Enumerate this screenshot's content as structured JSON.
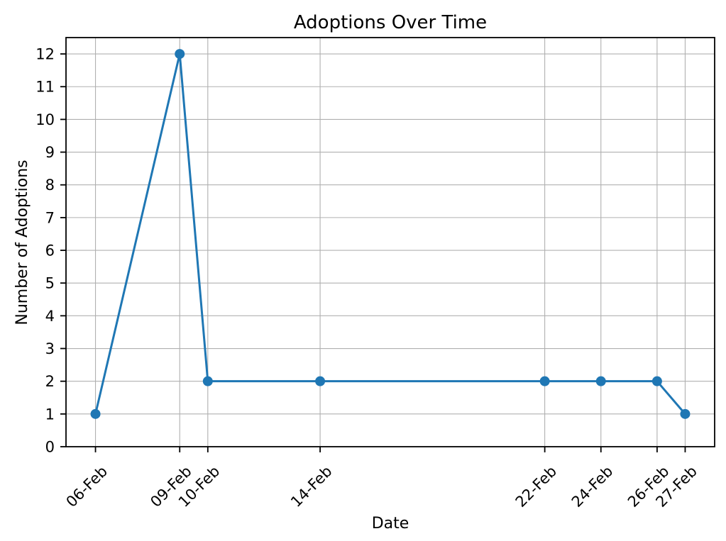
{
  "chart_data": {
    "type": "line",
    "title": "Adoptions Over Time",
    "xlabel": "Date",
    "ylabel": "Number of Adoptions",
    "x_tick_labels": [
      "06-Feb",
      "09-Feb",
      "10-Feb",
      "14-Feb",
      "22-Feb",
      "24-Feb",
      "26-Feb",
      "27-Feb"
    ],
    "x_day_numbers": [
      6,
      9,
      10,
      14,
      22,
      24,
      26,
      27
    ],
    "series": [
      {
        "name": "Adoptions",
        "values": [
          1,
          12,
          2,
          2,
          2,
          2,
          2,
          1
        ]
      }
    ],
    "y_ticks": [
      0,
      1,
      2,
      3,
      4,
      5,
      6,
      7,
      8,
      9,
      10,
      11,
      12
    ],
    "xlim_days": [
      4.95,
      28.05
    ],
    "ylim": [
      0,
      12.5
    ],
    "grid": true,
    "legend": "none",
    "x_tick_rotation_deg": 45,
    "line_color": "#1f77b4",
    "marker": "circle",
    "grid_color": "#b0b0b0",
    "axis_color": "#000000",
    "background_color": "#ffffff"
  }
}
